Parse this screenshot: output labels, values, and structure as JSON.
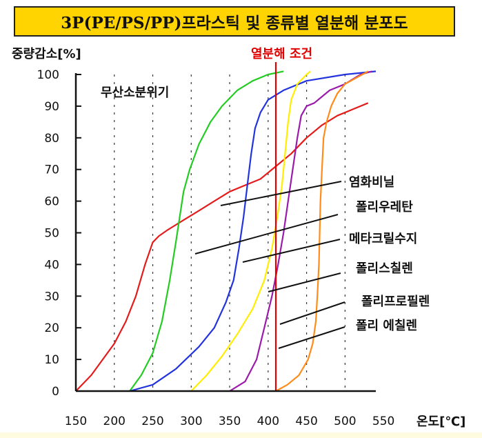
{
  "title": "3P(PE/PS/PP)프라스틱 및 종류별 열분해 분포도",
  "chart_data": {
    "type": "line",
    "title": "3P(PE/PS/PP)프라스틱 및 종류별 열분해 분포도",
    "ylabel": "중량감소[%]",
    "xlabel": "온도[℃]",
    "xlim": [
      150,
      550
    ],
    "ylim": [
      0,
      100
    ],
    "x_ticks": [
      150,
      200,
      250,
      300,
      350,
      400,
      450,
      500,
      550
    ],
    "y_ticks": [
      0,
      10,
      20,
      30,
      40,
      50,
      60,
      70,
      80,
      90,
      100
    ],
    "atmosphere_label": "무산소분위기",
    "condition_label": "열분해 조건",
    "condition_x": 410,
    "grid": "vertical dashed lines",
    "series": [
      {
        "name": "염화비닐",
        "color": "#e31b1b",
        "points": [
          [
            150,
            0
          ],
          [
            170,
            5
          ],
          [
            185,
            10
          ],
          [
            200,
            15
          ],
          [
            215,
            22
          ],
          [
            228,
            30
          ],
          [
            240,
            40
          ],
          [
            250,
            47
          ],
          [
            258,
            49
          ],
          [
            270,
            51
          ],
          [
            290,
            54
          ],
          [
            310,
            57
          ],
          [
            330,
            60
          ],
          [
            350,
            63
          ],
          [
            370,
            65
          ],
          [
            390,
            67
          ],
          [
            410,
            71
          ],
          [
            430,
            75
          ],
          [
            450,
            80
          ],
          [
            470,
            84
          ],
          [
            490,
            87
          ],
          [
            510,
            89
          ],
          [
            530,
            91
          ]
        ]
      },
      {
        "name": "메타크릴수지",
        "color": "#22cc22",
        "points": [
          [
            220,
            0
          ],
          [
            235,
            5
          ],
          [
            250,
            12
          ],
          [
            262,
            22
          ],
          [
            272,
            35
          ],
          [
            280,
            47
          ],
          [
            285,
            55
          ],
          [
            290,
            63
          ],
          [
            298,
            70
          ],
          [
            310,
            78
          ],
          [
            325,
            85
          ],
          [
            340,
            90
          ],
          [
            360,
            95
          ],
          [
            380,
            98
          ],
          [
            400,
            100
          ],
          [
            420,
            101
          ]
        ]
      },
      {
        "name": "폴리스칠렌",
        "color": "#2233dd",
        "points": [
          [
            220,
            0
          ],
          [
            250,
            2
          ],
          [
            280,
            7
          ],
          [
            310,
            14
          ],
          [
            330,
            20
          ],
          [
            345,
            28
          ],
          [
            355,
            35
          ],
          [
            362,
            45
          ],
          [
            368,
            55
          ],
          [
            373,
            65
          ],
          [
            378,
            75
          ],
          [
            383,
            83
          ],
          [
            390,
            88
          ],
          [
            400,
            92
          ],
          [
            420,
            95
          ],
          [
            450,
            98
          ],
          [
            500,
            100
          ],
          [
            540,
            101
          ]
        ]
      },
      {
        "name": "폴리우레탄",
        "color": "#ffee00",
        "points": [
          [
            300,
            0
          ],
          [
            320,
            5
          ],
          [
            340,
            11
          ],
          [
            360,
            18
          ],
          [
            380,
            26
          ],
          [
            395,
            35
          ],
          [
            405,
            45
          ],
          [
            412,
            55
          ],
          [
            418,
            65
          ],
          [
            422,
            75
          ],
          [
            426,
            85
          ],
          [
            430,
            92
          ],
          [
            438,
            97
          ],
          [
            450,
            100
          ],
          [
            455,
            101
          ]
        ]
      },
      {
        "name": "폴리프로필렌",
        "color": "#9a1aaa",
        "points": [
          [
            350,
            0
          ],
          [
            370,
            3
          ],
          [
            385,
            10
          ],
          [
            395,
            20
          ],
          [
            405,
            30
          ],
          [
            413,
            40
          ],
          [
            420,
            50
          ],
          [
            426,
            60
          ],
          [
            432,
            70
          ],
          [
            438,
            80
          ],
          [
            443,
            87
          ],
          [
            450,
            90
          ],
          [
            460,
            91
          ],
          [
            470,
            93
          ],
          [
            480,
            95
          ],
          [
            500,
            97
          ],
          [
            520,
            100
          ],
          [
            535,
            101
          ]
        ]
      },
      {
        "name": "폴리 에칠렌",
        "color": "#ff8c1a",
        "points": [
          [
            410,
            0
          ],
          [
            425,
            2
          ],
          [
            440,
            5
          ],
          [
            452,
            10
          ],
          [
            458,
            15
          ],
          [
            462,
            22
          ],
          [
            464,
            30
          ],
          [
            466,
            40
          ],
          [
            467,
            50
          ],
          [
            468,
            60
          ],
          [
            470,
            70
          ],
          [
            472,
            80
          ],
          [
            476,
            85
          ],
          [
            482,
            90
          ],
          [
            490,
            94
          ],
          [
            500,
            97
          ],
          [
            515,
            99
          ],
          [
            530,
            101
          ]
        ]
      }
    ],
    "annotations": [
      {
        "text": "염화비닐",
        "series": "염화비닐"
      },
      {
        "text": "폴리우레탄",
        "series": "폴리우레탄"
      },
      {
        "text": "메타크릴수지",
        "series": "메타크릴수지"
      },
      {
        "text": "폴리스칠렌",
        "series": "폴리스칠렌"
      },
      {
        "text": "폴리프로필렌",
        "series": "폴리프로필렌"
      },
      {
        "text": "폴리 에칠렌",
        "series": "폴리 에칠렌"
      }
    ]
  }
}
